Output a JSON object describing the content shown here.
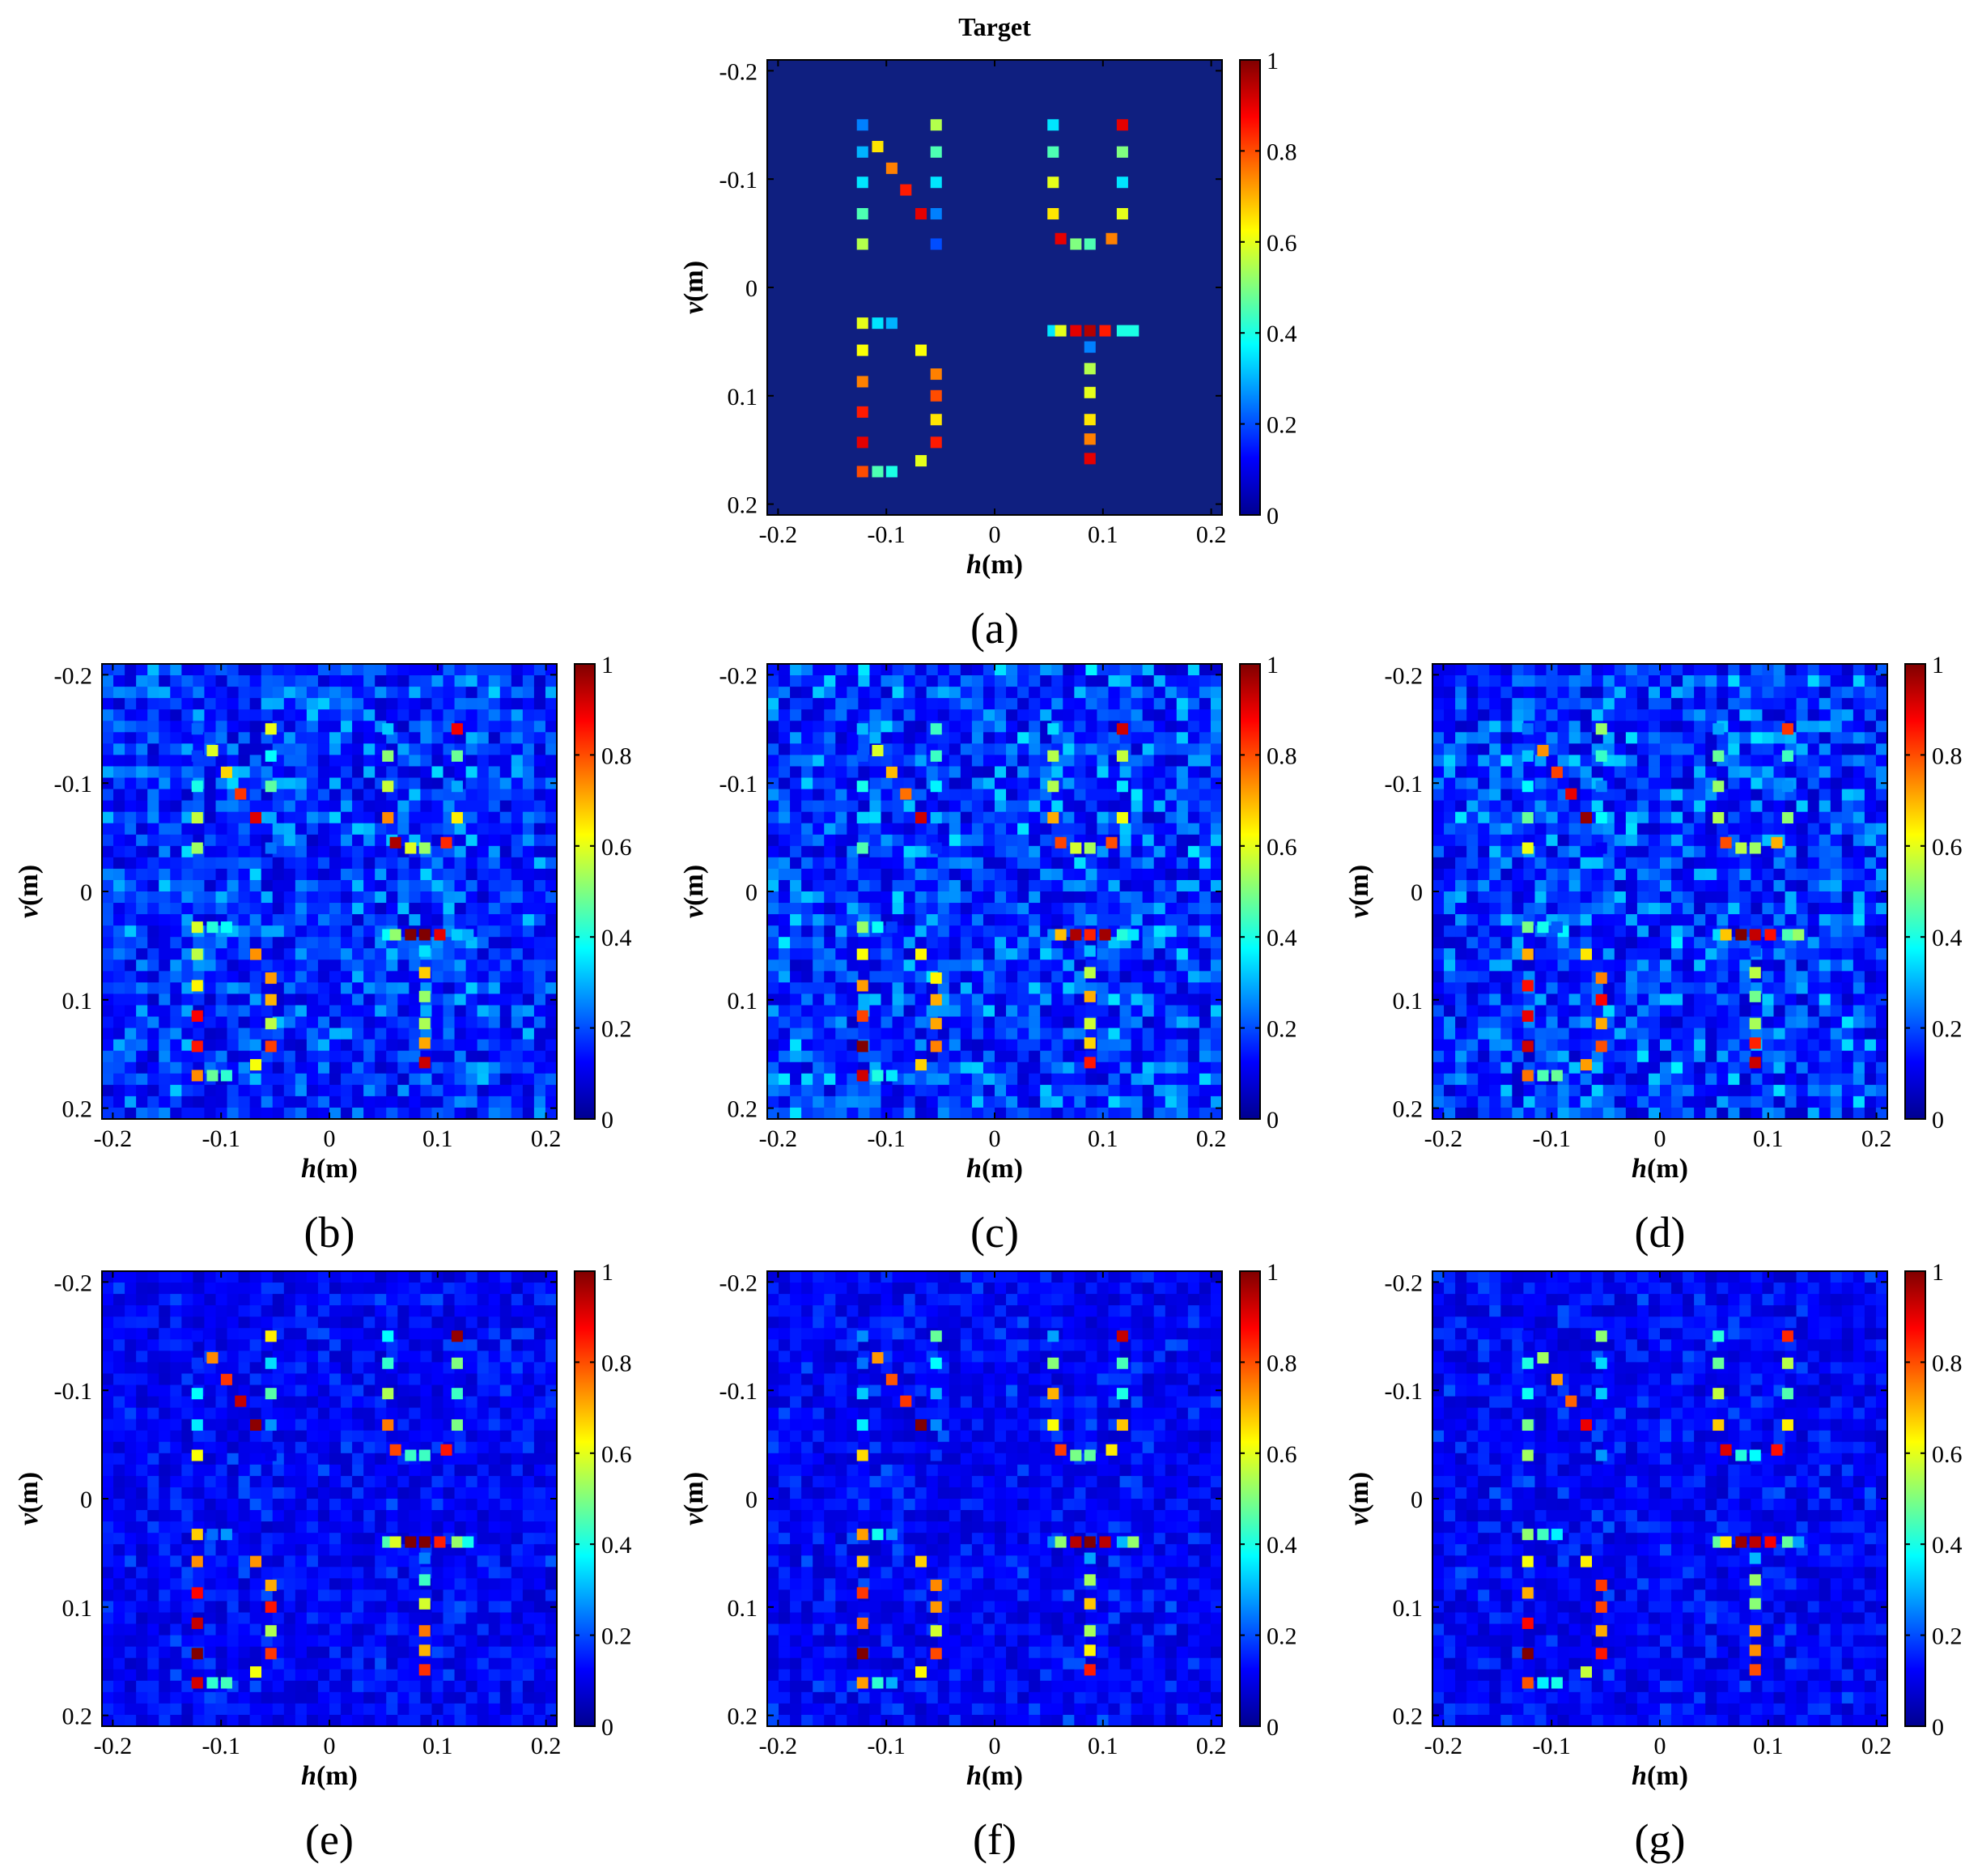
{
  "figure": {
    "colormap": "jet",
    "background_color": "#0f1f80",
    "target_title": "Target"
  },
  "labels": {
    "xlabel_var": "h",
    "xlabel_unit": "(m)",
    "ylabel_var": "v",
    "ylabel_unit": "(m)"
  },
  "ticks": {
    "x": [
      "-0.2",
      "-0.1",
      "0",
      "0.1",
      "0.2"
    ],
    "y": [
      "-0.2",
      "-0.1",
      "0",
      "0.1",
      "0.2"
    ],
    "colorbar": [
      "0",
      "0.2",
      "0.4",
      "0.6",
      "0.8",
      "1"
    ]
  },
  "chart_data": [
    {
      "type": "heatmap",
      "panel": "a",
      "caption": "(a)",
      "title": "Target",
      "xlabel": "h(m)",
      "ylabel": "v(m)",
      "xlim": [
        -0.21,
        0.21
      ],
      "ylim": [
        -0.21,
        0.21
      ],
      "y_reversed": true,
      "clim": [
        0,
        1
      ],
      "noise_level": 0,
      "grid": false,
      "grid_spacing": 0.0105,
      "cell_size": 0.0105,
      "scatterers": [
        [
          -0.122,
          -0.15,
          0.25
        ],
        [
          -0.122,
          -0.125,
          0.3
        ],
        [
          -0.122,
          -0.097,
          0.35
        ],
        [
          -0.122,
          -0.068,
          0.45
        ],
        [
          -0.122,
          -0.04,
          0.55
        ],
        [
          -0.108,
          -0.13,
          0.65
        ],
        [
          -0.095,
          -0.11,
          0.75
        ],
        [
          -0.082,
          -0.09,
          0.85
        ],
        [
          -0.068,
          -0.068,
          0.9
        ],
        [
          -0.054,
          -0.15,
          0.55
        ],
        [
          -0.054,
          -0.125,
          0.45
        ],
        [
          -0.054,
          -0.097,
          0.35
        ],
        [
          -0.054,
          -0.068,
          0.25
        ],
        [
          -0.054,
          -0.04,
          0.2
        ],
        [
          0.054,
          -0.15,
          0.35
        ],
        [
          0.054,
          -0.125,
          0.45
        ],
        [
          0.054,
          -0.097,
          0.6
        ],
        [
          0.054,
          -0.068,
          0.65
        ],
        [
          0.061,
          -0.045,
          0.9
        ],
        [
          0.075,
          -0.04,
          0.5
        ],
        [
          0.088,
          -0.04,
          0.45
        ],
        [
          0.108,
          -0.045,
          0.75
        ],
        [
          0.118,
          -0.068,
          0.6
        ],
        [
          0.118,
          -0.097,
          0.35
        ],
        [
          0.118,
          -0.125,
          0.5
        ],
        [
          0.118,
          -0.15,
          0.9
        ],
        [
          -0.122,
          0.033,
          0.6
        ],
        [
          -0.122,
          0.058,
          0.62
        ],
        [
          -0.122,
          0.087,
          0.75
        ],
        [
          -0.122,
          0.115,
          0.85
        ],
        [
          -0.122,
          0.143,
          0.9
        ],
        [
          -0.122,
          0.17,
          0.8
        ],
        [
          -0.108,
          0.033,
          0.35
        ],
        [
          -0.095,
          0.033,
          0.3
        ],
        [
          -0.068,
          0.058,
          0.62
        ],
        [
          -0.054,
          0.08,
          0.75
        ],
        [
          -0.054,
          0.1,
          0.8
        ],
        [
          -0.054,
          0.122,
          0.65
        ],
        [
          -0.054,
          0.143,
          0.85
        ],
        [
          -0.068,
          0.16,
          0.6
        ],
        [
          -0.108,
          0.17,
          0.45
        ],
        [
          -0.095,
          0.17,
          0.4
        ],
        [
          0.054,
          0.04,
          0.35
        ],
        [
          0.061,
          0.04,
          0.6
        ],
        [
          0.075,
          0.04,
          0.9
        ],
        [
          0.088,
          0.04,
          0.95
        ],
        [
          0.102,
          0.04,
          0.85
        ],
        [
          0.118,
          0.04,
          0.4
        ],
        [
          0.128,
          0.04,
          0.4
        ],
        [
          0.088,
          0.055,
          0.25
        ],
        [
          0.088,
          0.075,
          0.55
        ],
        [
          0.088,
          0.097,
          0.6
        ],
        [
          0.088,
          0.122,
          0.65
        ],
        [
          0.088,
          0.14,
          0.75
        ],
        [
          0.088,
          0.158,
          0.9
        ]
      ]
    },
    {
      "type": "heatmap",
      "panel": "b",
      "caption": "(b)",
      "xlabel": "h(m)",
      "ylabel": "v(m)",
      "xlim": [
        -0.21,
        0.21
      ],
      "ylim": [
        -0.21,
        0.21
      ],
      "clim": [
        0,
        1
      ],
      "scatterers": "same as (a)",
      "noise_level": 0.28
    },
    {
      "type": "heatmap",
      "panel": "c",
      "caption": "(c)",
      "xlabel": "h(m)",
      "ylabel": "v(m)",
      "xlim": [
        -0.21,
        0.21
      ],
      "ylim": [
        -0.21,
        0.21
      ],
      "clim": [
        0,
        1
      ],
      "scatterers": "same as (a)",
      "noise_level": 0.3
    },
    {
      "type": "heatmap",
      "panel": "d",
      "caption": "(d)",
      "xlabel": "h(m)",
      "ylabel": "v(m)",
      "xlim": [
        -0.21,
        0.21
      ],
      "ylim": [
        -0.21,
        0.21
      ],
      "clim": [
        0,
        1
      ],
      "scatterers": "same as (a)",
      "noise_level": 0.3
    },
    {
      "type": "heatmap",
      "panel": "e",
      "caption": "(e)",
      "xlabel": "h(m)",
      "ylabel": "v(m)",
      "xlim": [
        -0.21,
        0.21
      ],
      "ylim": [
        -0.21,
        0.21
      ],
      "clim": [
        0,
        1
      ],
      "scatterers": "same as (a)",
      "noise_level": 0.15
    },
    {
      "type": "heatmap",
      "panel": "f",
      "caption": "(f)",
      "xlabel": "h(m)",
      "ylabel": "v(m)",
      "xlim": [
        -0.21,
        0.21
      ],
      "ylim": [
        -0.21,
        0.21
      ],
      "clim": [
        0,
        1
      ],
      "scatterers": "same as (a)",
      "noise_level": 0.15
    },
    {
      "type": "heatmap",
      "panel": "g",
      "caption": "(g)",
      "xlabel": "h(m)",
      "ylabel": "v(m)",
      "xlim": [
        -0.21,
        0.21
      ],
      "ylim": [
        -0.21,
        0.21
      ],
      "clim": [
        0,
        1
      ],
      "scatterers": "same as (a)",
      "noise_level": 0.15
    }
  ]
}
